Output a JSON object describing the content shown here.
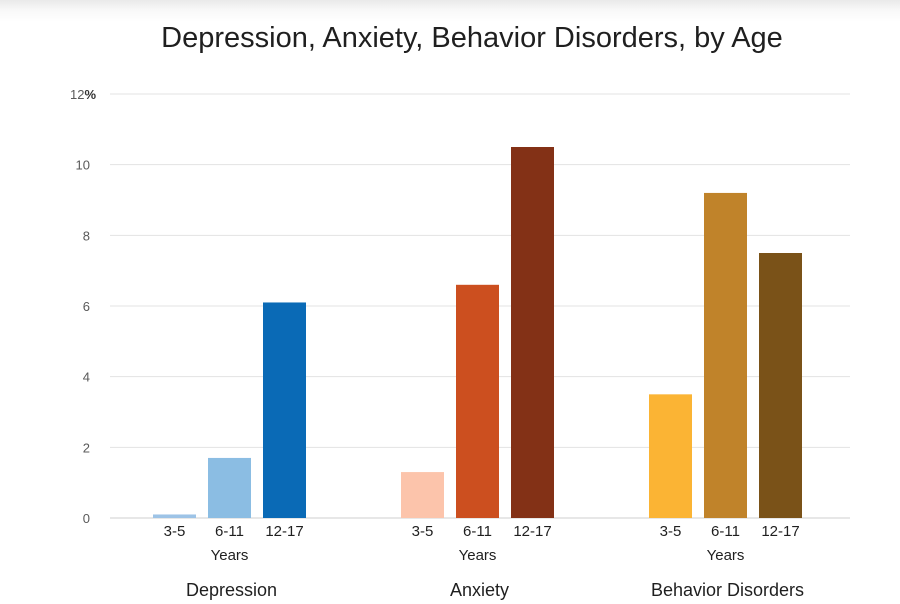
{
  "chart_data": {
    "type": "bar",
    "title": "Depression, Anxiety, Behavior Disorders, by Age",
    "ylabel": "",
    "xlabel": "",
    "y_unit": "%",
    "ylim": [
      0,
      12
    ],
    "yticks": [
      0,
      2,
      4,
      6,
      8,
      10,
      12
    ],
    "ytick_labels": [
      "0",
      "2",
      "4",
      "6",
      "8",
      "10",
      "12"
    ],
    "grid": true,
    "legend": "none",
    "categories": [
      "3-5",
      "6-11",
      "12-17"
    ],
    "category_sublabel": "Years",
    "groups": [
      {
        "name": "Depression",
        "values": [
          0.1,
          1.7,
          6.1
        ],
        "colors": [
          "#9dc3e6",
          "#8bbde3",
          "#0a6ab6"
        ]
      },
      {
        "name": "Anxiety",
        "values": [
          1.3,
          6.6,
          10.5
        ],
        "colors": [
          "#fcc4ab",
          "#cc4f1f",
          "#833116"
        ]
      },
      {
        "name": "Behavior Disorders",
        "values": [
          3.5,
          9.2,
          7.5
        ],
        "colors": [
          "#fbb434",
          "#c0832a",
          "#7a5218"
        ]
      }
    ]
  }
}
